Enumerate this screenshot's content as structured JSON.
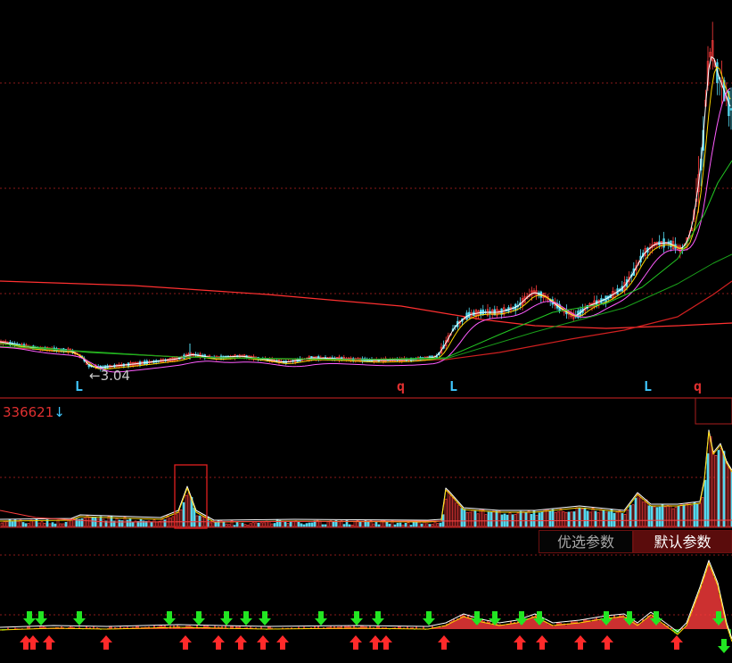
{
  "colors": {
    "bg": "#000000",
    "grid": "#8b1a1a",
    "up": "#ff3c3c",
    "down": "#54d8ee",
    "ma_white": "#ffffff",
    "ma_yellow": "#ffd700",
    "ma_magenta": "#ff5cff",
    "ma_green": "#23c823",
    "ma_red": "#ff3030",
    "signal_blue": "#40c8ff",
    "signal_red": "#e03030",
    "arrow_up": "#ff2a2a",
    "arrow_down": "#22e622"
  },
  "price_panel": {
    "low_marker": "3.04",
    "signals": [
      {
        "text": "L",
        "type": "L"
      },
      {
        "text": "q",
        "type": "q"
      },
      {
        "text": "L",
        "type": "L"
      },
      {
        "text": "L",
        "type": "L"
      },
      {
        "text": "q",
        "type": "q"
      }
    ]
  },
  "volume_panel": {
    "value_label": "336621",
    "value_arrow": "↓"
  },
  "buttons": {
    "optimized_params": "优选参数",
    "default_params": "默认参数"
  },
  "chart_data": {
    "type": "candlestick",
    "note_series": [
      "price",
      "volume",
      "oscillator"
    ],
    "ylim_price": [
      2.5,
      12.5
    ],
    "ylim_volume": [
      0,
      340000
    ],
    "low_value": 3.04
  }
}
